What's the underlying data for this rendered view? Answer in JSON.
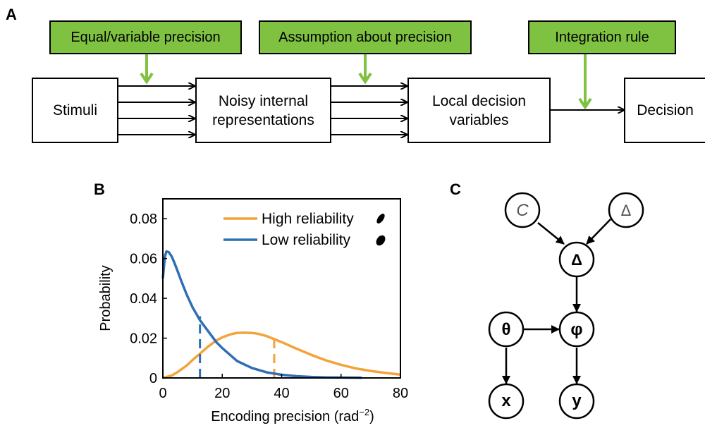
{
  "panels": {
    "a": "A",
    "b": "B",
    "c": "C"
  },
  "flow": {
    "boxes": {
      "stimuli": "Stimuli",
      "noisy_line1": "Noisy internal",
      "noisy_line2": "representations",
      "local_line1": "Local decision",
      "local_line2": "variables",
      "decision": "Decision"
    },
    "modifiers": {
      "precision": "Equal/variable precision",
      "assumption": "Assumption about precision",
      "integration": "Integration rule"
    }
  },
  "graph": {
    "nodes": {
      "C": "C",
      "Delta_prior": "Δ",
      "Delta": "Δ",
      "theta": "θ",
      "phi": "φ",
      "x": "x",
      "y": "y"
    }
  },
  "colors": {
    "green": "#7fc241",
    "orange": "#f2a33a",
    "blue": "#2e6fb5"
  },
  "chart_data": {
    "type": "line",
    "xlabel": "Encoding precision (rad",
    "xlabel_sup": "−2",
    "xlabel_close": ")",
    "ylabel": "Probability",
    "xlim": [
      0,
      80
    ],
    "ylim": [
      0,
      0.09
    ],
    "xticks": [
      "0",
      "20",
      "40",
      "60",
      "80"
    ],
    "yticks": [
      "0",
      "0.02",
      "0.04",
      "0.06",
      "0.08"
    ],
    "xtick_values": [
      0,
      20,
      40,
      60,
      80
    ],
    "ytick_values": [
      0,
      0.02,
      0.04,
      0.06,
      0.08
    ],
    "legend": "top-right",
    "series": [
      {
        "name": "High reliability",
        "color": "#f2a33a",
        "x": [
          0,
          3,
          5,
          8,
          10,
          12.5,
          15,
          18,
          20,
          23,
          25,
          27,
          30,
          32,
          35,
          38,
          40,
          45,
          50,
          55,
          60,
          65,
          70,
          75,
          80
        ],
        "y": [
          0,
          0.0012,
          0.003,
          0.0062,
          0.009,
          0.0122,
          0.0155,
          0.0188,
          0.0204,
          0.022,
          0.0226,
          0.0228,
          0.0226,
          0.0222,
          0.021,
          0.0192,
          0.018,
          0.0147,
          0.0116,
          0.0088,
          0.0066,
          0.0048,
          0.0035,
          0.0025,
          0.0017
        ],
        "mean": 37.5,
        "mean_y": 0.0192
      },
      {
        "name": "Low reliability",
        "color": "#2e6fb5",
        "x": [
          0,
          0.7,
          1.2,
          2,
          3,
          4,
          5,
          6,
          8,
          10,
          12.5,
          15,
          18,
          20,
          25,
          30,
          35,
          40,
          45,
          50,
          55,
          60,
          67
        ],
        "y": [
          0.05,
          0.061,
          0.0636,
          0.0632,
          0.061,
          0.0575,
          0.0535,
          0.0495,
          0.042,
          0.0355,
          0.029,
          0.024,
          0.018,
          0.015,
          0.0085,
          0.005,
          0.0028,
          0.0016,
          0.0009,
          0.0005,
          0.0003,
          0.0002,
          0.0001
        ],
        "mean": 12.5,
        "mean_y": 0.031
      }
    ]
  }
}
